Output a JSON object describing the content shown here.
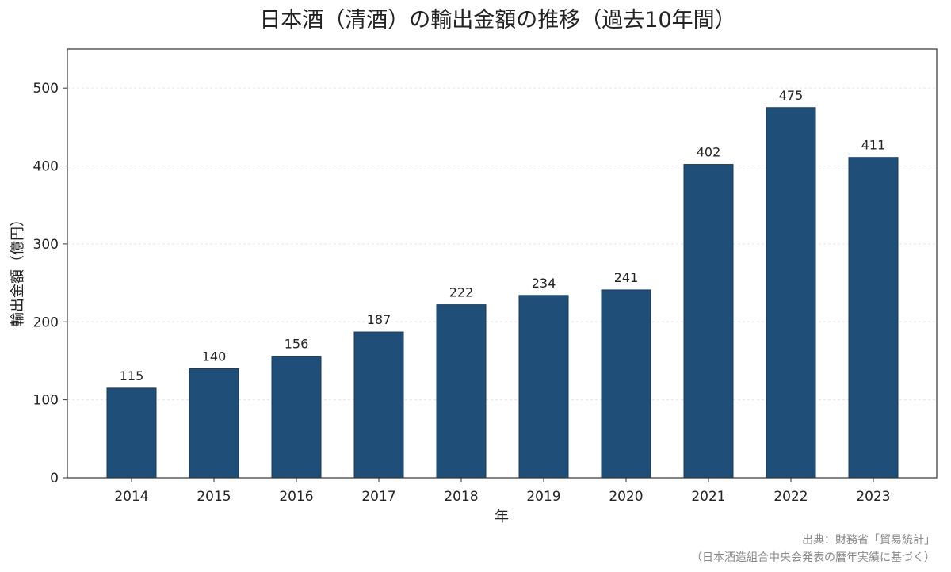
{
  "chart_data": {
    "type": "bar",
    "title": "日本酒（清酒）の輸出金額の推移（過去10年間）",
    "xlabel": "年",
    "ylabel": "輸出金額（億円）",
    "categories": [
      "2014",
      "2015",
      "2016",
      "2017",
      "2018",
      "2019",
      "2020",
      "2021",
      "2022",
      "2023"
    ],
    "values": [
      115,
      140,
      156,
      187,
      222,
      234,
      241,
      402,
      475,
      411
    ],
    "data_labels": [
      "115",
      "140",
      "156",
      "187",
      "222",
      "234",
      "241",
      "402",
      "475",
      "411"
    ],
    "ylim": [
      0,
      550
    ],
    "yticks": [
      0,
      100,
      200,
      300,
      400,
      500
    ],
    "grid": true,
    "bar_color": "#1f4e79",
    "source_lines": [
      "出典：財務省「貿易統計」",
      "（日本酒造組合中央会発表の暦年実績に基づく）"
    ]
  }
}
